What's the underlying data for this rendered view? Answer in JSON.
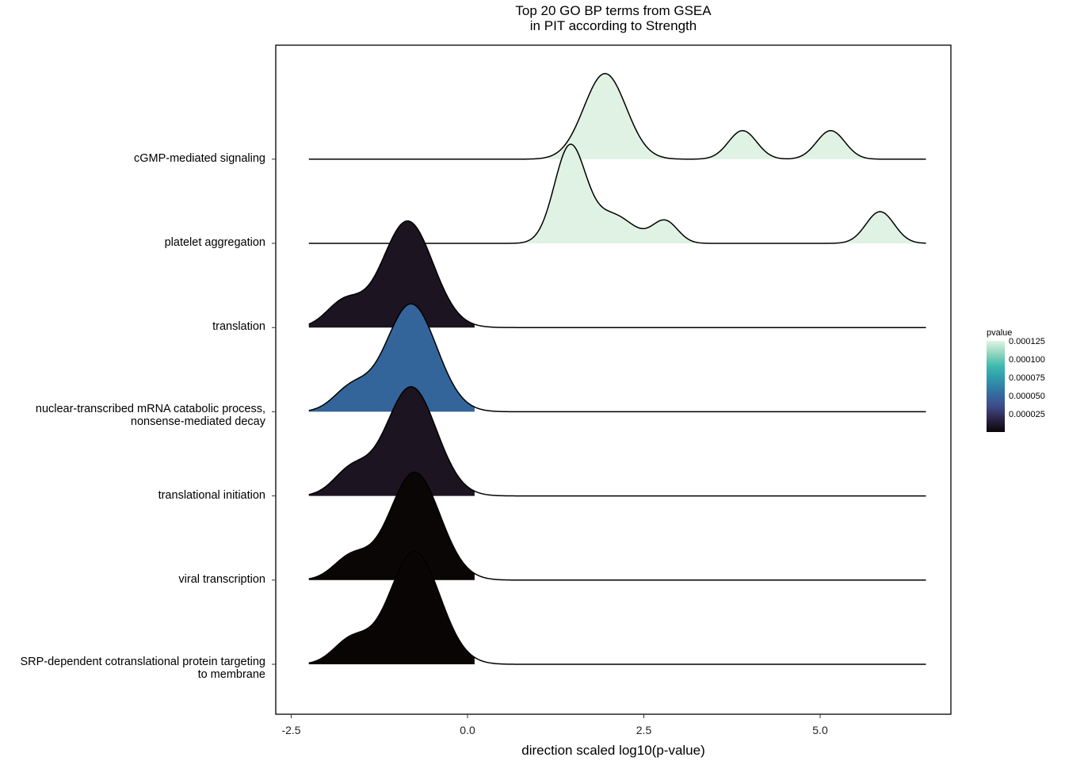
{
  "chart_data": {
    "type": "ridgeline",
    "title_line1": "Top 20 GO BP terms from GSEA",
    "title_line2": "in PIT according to Strength",
    "xlabel": "direction scaled log10(p-value)",
    "ylabel": "",
    "xlim": [
      -2.75,
      6.85
    ],
    "x_ticks": [
      "-2.5",
      "0.0",
      "2.5",
      "5.0"
    ],
    "x_tick_values": [
      -2.5,
      0.0,
      2.5,
      5.0
    ],
    "grid": false,
    "legend_position": "right",
    "density_range": [
      -2.25,
      6.5
    ],
    "categories_bottom_to_top": [
      "SRP-dependent cotranslational protein targeting to membrane",
      "viral transcription",
      "translational initiation",
      "nuclear-transcribed mRNA catabolic process, nonsense-mediated decay",
      "translation",
      "platelet aggregation",
      "cGMP-mediated signaling"
    ],
    "y_labels": [
      {
        "line1": "SRP-dependent cotranslational protein targeting",
        "line2": "to membrane"
      },
      {
        "line1": "viral transcription",
        "line2": ""
      },
      {
        "line1": "translational initiation",
        "line2": ""
      },
      {
        "line1": "nuclear-transcribed mRNA catabolic process,",
        "line2": "nonsense-mediated decay"
      },
      {
        "line1": "translation",
        "line2": ""
      },
      {
        "line1": "platelet aggregation",
        "line2": ""
      },
      {
        "line1": "cGMP-mediated signaling",
        "line2": ""
      }
    ],
    "series": [
      {
        "pvalue": 8e-07,
        "fill": "#0a0505",
        "peaks": [
          {
            "mu": -0.75,
            "sigma": 0.36,
            "h": 1.78
          },
          {
            "mu": -1.65,
            "sigma": 0.25,
            "h": 0.38
          }
        ],
        "fill_from": -2.25,
        "fill_to": 0.1
      },
      {
        "pvalue": 1e-06,
        "fill": "#0b0606",
        "peaks": [
          {
            "mu": -0.75,
            "sigma": 0.36,
            "h": 1.7
          },
          {
            "mu": -1.65,
            "sigma": 0.25,
            "h": 0.36
          }
        ],
        "fill_from": -2.25,
        "fill_to": 0.1
      },
      {
        "pvalue": 4e-06,
        "fill": "#1c1420",
        "peaks": [
          {
            "mu": -0.8,
            "sigma": 0.36,
            "h": 1.72
          },
          {
            "mu": -1.65,
            "sigma": 0.25,
            "h": 0.4
          }
        ],
        "fill_from": -2.25,
        "fill_to": 0.1
      },
      {
        "pvalue": 4.8e-05,
        "fill": "#34659a",
        "peaks": [
          {
            "mu": -0.8,
            "sigma": 0.36,
            "h": 1.7
          },
          {
            "mu": -1.65,
            "sigma": 0.25,
            "h": 0.36
          }
        ],
        "fill_from": -2.25,
        "fill_to": 0.1
      },
      {
        "pvalue": 4e-06,
        "fill": "#1c1420",
        "peaks": [
          {
            "mu": -0.85,
            "sigma": 0.36,
            "h": 1.68
          },
          {
            "mu": -1.75,
            "sigma": 0.25,
            "h": 0.4
          }
        ],
        "fill_from": -2.25,
        "fill_to": 0.1
      },
      {
        "pvalue": 0.000126,
        "fill": "#dff2e3",
        "peaks": [
          {
            "mu": 1.45,
            "sigma": 0.22,
            "h": 1.5
          },
          {
            "mu": 2.05,
            "sigma": 0.3,
            "h": 0.45
          },
          {
            "mu": 2.8,
            "sigma": 0.18,
            "h": 0.35
          },
          {
            "mu": 5.85,
            "sigma": 0.2,
            "h": 0.5
          }
        ],
        "fill_from": 0.75,
        "fill_to": 6.5
      },
      {
        "pvalue": 0.000126,
        "fill": "#dff2e3",
        "peaks": [
          {
            "mu": 1.95,
            "sigma": 0.3,
            "h": 1.35
          },
          {
            "mu": 3.9,
            "sigma": 0.2,
            "h": 0.45
          },
          {
            "mu": 5.15,
            "sigma": 0.2,
            "h": 0.45
          }
        ],
        "fill_from": 1.15,
        "fill_to": 5.7
      }
    ],
    "legend": {
      "title": "pvalue",
      "labels": [
        "0.000125",
        "0.000100",
        "0.000075",
        "0.000050",
        "0.000025"
      ],
      "label_values": [
        0.000125,
        0.0001,
        7.5e-05,
        5e-05,
        2.5e-05
      ],
      "range": [
        8e-07,
        0.000126
      ],
      "gradient_colors": [
        "#0a0505",
        "#2b2548",
        "#3f4c8c",
        "#336ea0",
        "#2f95ab",
        "#3ab8ad",
        "#8fd5bd",
        "#def5e5"
      ]
    }
  }
}
